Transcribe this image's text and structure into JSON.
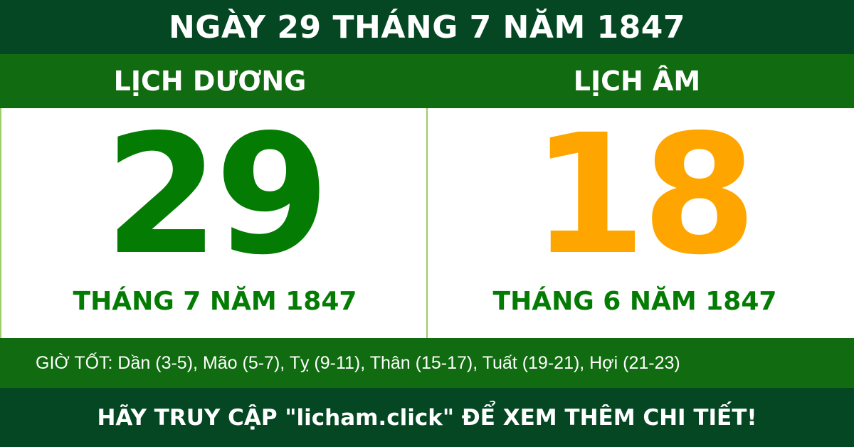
{
  "header": {
    "title": "NGÀY 29 THÁNG 7 NĂM 1847"
  },
  "solar": {
    "label": "LỊCH DƯƠNG",
    "day": "29",
    "month_year": "THÁNG 7 NĂM 1847",
    "color": "#047c04"
  },
  "lunar": {
    "label": "LỊCH ÂM",
    "day": "18",
    "month_year": "THÁNG 6 NĂM 1847",
    "color": "#ffa500"
  },
  "good_hours": {
    "text": "GIỜ TỐT: Dần (3-5), Mão (5-7), Tỵ (9-11), Thân (15-17), Tuất (19-21), Hợi (21-23)"
  },
  "footer": {
    "text": "HÃY TRUY CẬP \"licham.click\" ĐỂ XEM THÊM CHI TIẾT!"
  },
  "colors": {
    "dark_green": "#044722",
    "green": "#116b10",
    "divider": "#9ccc65"
  }
}
